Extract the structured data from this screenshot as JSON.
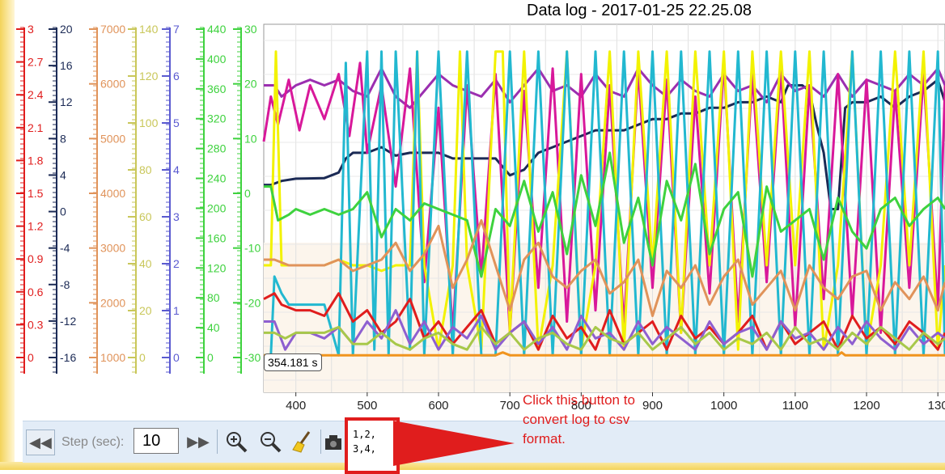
{
  "chart_data": {
    "type": "line",
    "title": "Data log - 2017-01-25 22.25.08",
    "xlabel": "",
    "ylabel": "",
    "xlim": [
      355,
      1310
    ],
    "x_ticks": [
      "400",
      "500",
      "600",
      "700",
      "800",
      "900",
      "1000",
      "1100",
      "1200",
      "130"
    ],
    "grid": true,
    "y_axes": [
      {
        "color": "#e01d1d",
        "ylim": [
          -0.1,
          3.05
        ],
        "ticks": [
          "3",
          "2.7",
          "2.4",
          "2.1",
          "1.8",
          "1.5",
          "1.2",
          "0.9",
          "0.6",
          "0.3",
          "0"
        ]
      },
      {
        "color": "#1b2a55",
        "ylim": [
          -17,
          22
        ],
        "ticks": [
          "20",
          "16",
          "12",
          "8",
          "4",
          "0",
          "-4",
          "-8",
          "-12",
          "-16"
        ]
      },
      {
        "color": "#e0935a",
        "ylim": [
          -200,
          7400
        ],
        "ticks": [
          "7000",
          "6000",
          "5000",
          "4000",
          "3000",
          "2000",
          "1000"
        ]
      },
      {
        "color": "#c9c75a",
        "ylim": [
          -5,
          150
        ],
        "ticks": [
          "140",
          "120",
          "100",
          "80",
          "60",
          "40",
          "20",
          "0"
        ]
      },
      {
        "color": "#5a5ad0",
        "ylim": [
          -0.2,
          7.4
        ],
        "ticks": [
          "7",
          "6",
          "5",
          "4",
          "3",
          "2",
          "1",
          "0"
        ]
      },
      {
        "color": "#3ed23e",
        "ylim": [
          -5,
          445
        ],
        "ticks": [
          "440",
          "400",
          "360",
          "320",
          "280",
          "240",
          "200",
          "160",
          "120",
          "80",
          "40",
          "0"
        ]
      },
      {
        "color": "#3ed23e",
        "ylim": [
          -30,
          32
        ],
        "ticks": [
          "30",
          "20",
          "10",
          "0",
          "-10",
          "-20",
          "-30"
        ]
      }
    ],
    "series": [
      {
        "color": "#1b2a55",
        "x": [
          355,
          365,
          380,
          400,
          440,
          460,
          470,
          480,
          500,
          520,
          540,
          560,
          580,
          600,
          620,
          640,
          660,
          680,
          700,
          720,
          740,
          760,
          780,
          800,
          820,
          840,
          860,
          880,
          900,
          920,
          940,
          960,
          980,
          1000,
          1020,
          1040,
          1060,
          1080,
          1090,
          1100,
          1110,
          1120,
          1130,
          1140,
          1150,
          1160,
          1170,
          1180,
          1200,
          1220,
          1240,
          1260,
          1280,
          1300,
          1310
        ],
        "y": [
          4.3,
          4.3,
          5,
          5.4,
          5.5,
          6.5,
          9,
          10,
          10,
          11,
          9.5,
          10,
          10,
          10,
          9,
          9,
          9,
          9,
          6,
          7,
          10,
          11,
          12,
          13,
          14,
          14,
          14,
          15,
          16,
          16,
          17,
          17,
          18,
          18,
          19,
          19,
          20,
          19,
          22,
          22,
          22,
          21,
          15,
          10,
          0,
          0,
          18,
          19,
          19,
          20,
          18,
          20,
          21,
          23,
          19
        ]
      },
      {
        "color": "#9b2fb0",
        "x": [
          355,
          370,
          380,
          400,
          420,
          440,
          460,
          480,
          500,
          520,
          540,
          560,
          580,
          600,
          620,
          640,
          660,
          680,
          700,
          720,
          740,
          760,
          780,
          800,
          820,
          840,
          860,
          880,
          900,
          920,
          940,
          960,
          980,
          1000,
          1020,
          1040,
          1060,
          1080,
          1100,
          1120,
          1140,
          1160,
          1180,
          1200,
          1220,
          1240,
          1260,
          1280,
          1300,
          1310
        ],
        "y": [
          22,
          22,
          20,
          22,
          23,
          22,
          23,
          21,
          20,
          25,
          20,
          18,
          21,
          24,
          22,
          21,
          20,
          23,
          19,
          22,
          25,
          21,
          22,
          20,
          24,
          21,
          20,
          25,
          22,
          20,
          23,
          21,
          20,
          24,
          21,
          22,
          19,
          24,
          21,
          22,
          20,
          24,
          20,
          23,
          22,
          21,
          24,
          22,
          25,
          22
        ]
      },
      {
        "color": "#d8189a",
        "x": [
          355,
          365,
          375,
          390,
          405,
          420,
          440,
          460,
          475,
          490,
          500,
          520,
          540,
          560,
          580,
          600,
          620,
          640,
          660,
          680,
          700,
          720,
          740,
          760,
          780,
          800,
          820,
          840,
          860,
          880,
          900,
          920,
          940,
          960,
          980,
          1000,
          1020,
          1040,
          1060,
          1080,
          1100,
          1120,
          1140,
          1160,
          1180,
          1200,
          1220,
          1240,
          1260,
          1280,
          1300,
          1310
        ],
        "y": [
          12,
          20,
          15,
          23,
          14,
          22,
          16,
          24,
          13,
          26,
          10,
          22,
          4,
          25,
          -13,
          18,
          -22,
          22,
          -12,
          24,
          -22,
          21,
          -14,
          25,
          -20,
          24,
          -18,
          22,
          -21,
          25,
          -14,
          23,
          -22,
          20,
          -15,
          26,
          -20,
          24,
          -13,
          25,
          -21,
          22,
          -16,
          24,
          -19,
          23,
          -22,
          21,
          -14,
          24,
          -18,
          22
        ]
      },
      {
        "color": "#f2f200",
        "x": [
          355,
          365,
          372,
          380,
          400,
          420,
          440,
          460,
          480,
          500,
          520,
          540,
          560,
          570,
          580,
          600,
          620,
          630,
          640,
          660,
          680,
          690,
          700,
          720,
          740,
          760,
          780,
          800,
          820,
          840,
          860,
          880,
          900,
          920,
          940,
          960,
          980,
          1000,
          1020,
          1040,
          1060,
          1080,
          1100,
          1120,
          1140,
          1160,
          1180,
          1200,
          1220,
          1240,
          1260,
          1280,
          1300,
          1310
        ],
        "y": [
          -10,
          -10,
          28,
          -10,
          -10,
          -10,
          -10,
          -9,
          -10,
          -10,
          -11,
          -10,
          -10,
          28,
          -10,
          -25,
          -10,
          28,
          -10,
          -25,
          28,
          28,
          -22,
          28,
          -25,
          -10,
          28,
          -25,
          -10,
          28,
          -25,
          28,
          -10,
          28,
          -22,
          28,
          -10,
          28,
          -25,
          28,
          -10,
          28,
          -10,
          28,
          -25,
          -10,
          28,
          -25,
          -10,
          28,
          -10,
          28,
          -25,
          -10
        ]
      },
      {
        "color": "#22b8d0",
        "x": [
          355,
          365,
          370,
          380,
          390,
          400,
          420,
          430,
          440,
          460,
          470,
          480,
          500,
          510,
          520,
          530,
          540,
          560,
          570,
          580,
          600,
          620,
          640,
          660,
          680,
          700,
          720,
          740,
          760,
          780,
          800,
          820,
          840,
          860,
          880,
          900,
          920,
          940,
          960,
          980,
          1000,
          1020,
          1040,
          1060,
          1080,
          1100,
          1120,
          1140,
          1160,
          1180,
          1200,
          1220,
          1240,
          1260,
          1280,
          1300,
          1310
        ],
        "y": [
          -26,
          -26,
          -12,
          -15,
          -17,
          -17,
          -17,
          -17,
          -17,
          -26,
          26,
          -26,
          28,
          -25,
          28,
          -26,
          28,
          -25,
          28,
          -26,
          28,
          -26,
          28,
          -26,
          -26,
          28,
          -26,
          28,
          -26,
          28,
          -26,
          28,
          -26,
          28,
          -26,
          28,
          -26,
          28,
          -26,
          28,
          -26,
          28,
          -26,
          28,
          -26,
          28,
          -26,
          28,
          -26,
          28,
          -26,
          28,
          -26,
          28,
          -26,
          28,
          -26
        ]
      },
      {
        "color": "#3ed23e",
        "x": [
          355,
          365,
          375,
          390,
          400,
          420,
          440,
          460,
          480,
          500,
          520,
          540,
          560,
          580,
          600,
          620,
          640,
          660,
          680,
          700,
          720,
          740,
          760,
          780,
          800,
          820,
          840,
          860,
          880,
          900,
          920,
          940,
          960,
          980,
          1000,
          1020,
          1040,
          1060,
          1080,
          1100,
          1120,
          1140,
          1160,
          1180,
          1200,
          1220,
          1240,
          1260,
          1280,
          1300,
          1310
        ],
        "y": [
          4,
          4,
          -2,
          -1,
          0,
          -1,
          0,
          -1,
          0,
          3,
          -5,
          0,
          -2,
          1,
          0,
          -1,
          -2,
          -12,
          0,
          -3,
          5,
          -4,
          3,
          -8,
          6,
          -3,
          10,
          -6,
          2,
          -10,
          5,
          -2,
          8,
          -8,
          0,
          3,
          -12,
          4,
          -4,
          -2,
          0,
          -9,
          2,
          -4,
          -7,
          0,
          2,
          -3,
          0,
          2,
          0
        ]
      },
      {
        "color": "#e0935a",
        "x": [
          355,
          370,
          390,
          400,
          420,
          440,
          460,
          480,
          500,
          520,
          540,
          560,
          580,
          600,
          620,
          640,
          660,
          680,
          700,
          720,
          740,
          760,
          780,
          800,
          820,
          840,
          860,
          880,
          900,
          920,
          940,
          960,
          980,
          1000,
          1020,
          1040,
          1060,
          1080,
          1100,
          1120,
          1140,
          1160,
          1180,
          1200,
          1220,
          1240,
          1260,
          1280,
          1300,
          1310
        ],
        "y": [
          -9,
          -9,
          -10,
          -10,
          -10,
          -10,
          -9,
          -11,
          -10,
          -9,
          -6,
          -11,
          -8,
          -3,
          -14,
          -9,
          -2,
          -10,
          -18,
          -9,
          -6,
          -12,
          -14,
          -11,
          -9,
          -15,
          -13,
          -9,
          -19,
          -11,
          -14,
          -10,
          -17,
          -12,
          -9,
          -17,
          -14,
          -11,
          -18,
          -10,
          -14,
          -16,
          -12,
          -11,
          -18,
          -13,
          -16,
          -12,
          -18,
          -13
        ]
      },
      {
        "color": "#e01d1d",
        "x": [
          355,
          370,
          380,
          400,
          420,
          440,
          460,
          480,
          500,
          520,
          540,
          560,
          580,
          600,
          620,
          640,
          660,
          680,
          700,
          720,
          740,
          760,
          780,
          800,
          820,
          840,
          860,
          880,
          900,
          920,
          940,
          960,
          980,
          1000,
          1020,
          1040,
          1060,
          1080,
          1100,
          1120,
          1140,
          1160,
          1180,
          1200,
          1220,
          1240,
          1260,
          1280,
          1300,
          1310
        ],
        "y": [
          -16,
          -15,
          -17,
          -18,
          -18,
          -19,
          -15,
          -20,
          -18,
          -22,
          -20,
          -16,
          -23,
          -20,
          -24,
          -21,
          -18,
          -24,
          -22,
          -20,
          -25,
          -19,
          -23,
          -21,
          -25,
          -18,
          -24,
          -22,
          -20,
          -25,
          -19,
          -23,
          -21,
          -24,
          -22,
          -19,
          -25,
          -20,
          -24,
          -22,
          -20,
          -25,
          -19,
          -23,
          -21,
          -24,
          -20,
          -22,
          -25,
          -22
        ]
      },
      {
        "color": "#8e5fd0",
        "x": [
          355,
          370,
          385,
          400,
          420,
          440,
          460,
          480,
          500,
          520,
          540,
          560,
          580,
          600,
          620,
          640,
          660,
          680,
          700,
          720,
          740,
          760,
          780,
          800,
          820,
          840,
          860,
          880,
          900,
          920,
          940,
          960,
          980,
          1000,
          1020,
          1040,
          1060,
          1080,
          1100,
          1120,
          1140,
          1160,
          1180,
          1200,
          1220,
          1240,
          1260,
          1280,
          1300,
          1310
        ],
        "y": [
          -20,
          -20,
          -25,
          -22,
          -22,
          -23,
          -21,
          -24,
          -20,
          -23,
          -18,
          -24,
          -20,
          -25,
          -21,
          -23,
          -19,
          -25,
          -22,
          -20,
          -24,
          -21,
          -25,
          -19,
          -23,
          -22,
          -25,
          -20,
          -24,
          -21,
          -23,
          -25,
          -20,
          -24,
          -22,
          -21,
          -25,
          -20,
          -23,
          -22,
          -25,
          -21,
          -24,
          -20,
          -23,
          -25,
          -21,
          -24,
          -22,
          -23
        ]
      },
      {
        "color": "#a8c84a",
        "x": [
          355,
          370,
          385,
          400,
          420,
          440,
          460,
          480,
          500,
          520,
          540,
          560,
          580,
          600,
          620,
          640,
          660,
          680,
          700,
          720,
          740,
          760,
          780,
          800,
          820,
          840,
          860,
          880,
          900,
          920,
          940,
          960,
          980,
          1000,
          1020,
          1040,
          1060,
          1080,
          1100,
          1120,
          1140,
          1160,
          1180,
          1200,
          1220,
          1240,
          1260,
          1280,
          1300,
          1310
        ],
        "y": [
          -22,
          -22,
          -23,
          -22,
          -22,
          -22,
          -21,
          -24,
          -24,
          -22,
          -24,
          -25,
          -23,
          -22,
          -24,
          -25,
          -21,
          -24,
          -22,
          -25,
          -23,
          -22,
          -24,
          -25,
          -21,
          -23,
          -24,
          -22,
          -25,
          -23,
          -21,
          -24,
          -22,
          -25,
          -23,
          -24,
          -22,
          -25,
          -21,
          -24,
          -23,
          -25,
          -22,
          -24,
          -21,
          -23,
          -25,
          -22,
          -24,
          -23
        ]
      },
      {
        "color": "#f0941e",
        "x": [
          355,
          400,
          500,
          600,
          680,
          690,
          700,
          800,
          900,
          1000,
          1100,
          1160,
          1165,
          1170,
          1200,
          1300,
          1310
        ],
        "y": [
          -26,
          -26,
          -26,
          -26,
          -26,
          -25.5,
          -26,
          -26,
          -26,
          -26,
          -26,
          -26,
          -25.5,
          -26,
          -26,
          -26,
          -26
        ]
      }
    ]
  },
  "cursor_readout": "354.181 s",
  "toolbar": {
    "rewind_icon": "rewind-icon",
    "step_label": "Step (sec):",
    "step_value": "10",
    "forward_icon": "fast-forward-icon",
    "zoom_in_icon": "zoom-in-icon",
    "zoom_out_icon": "zoom-out-icon",
    "clear_icon": "broom-icon",
    "camera_icon": "camera-icon",
    "csv_text": "1,2,\n3,4,"
  },
  "annotation": {
    "text": "Click this button to\nconvert log to csv\nformat.",
    "color": "#e01d1d"
  },
  "plot_background": "#fcf5ec"
}
